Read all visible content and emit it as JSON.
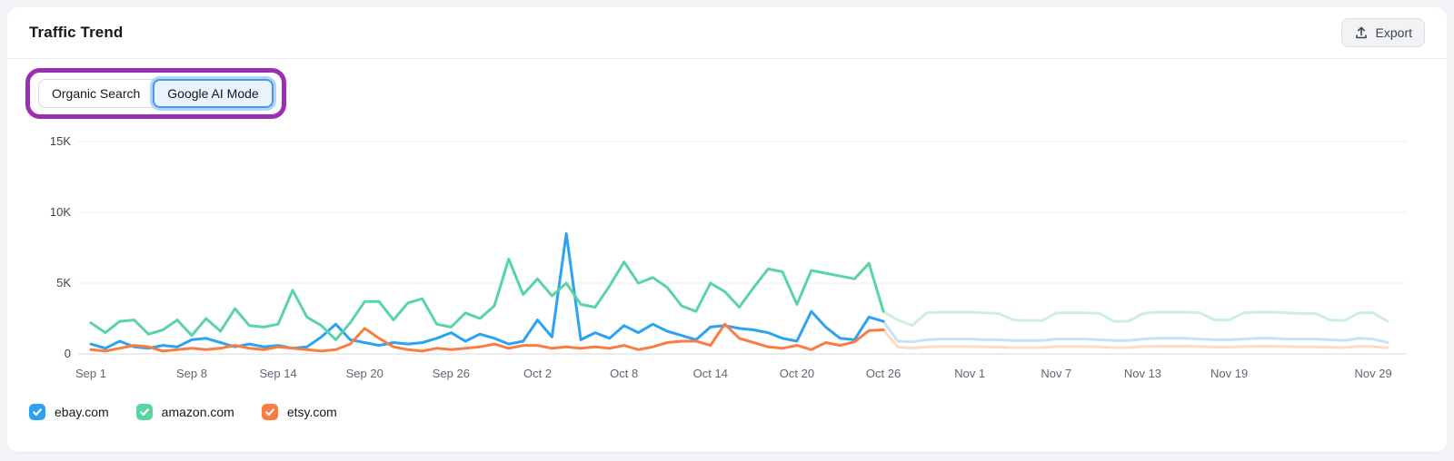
{
  "header": {
    "title": "Traffic Trend",
    "export_label": "Export"
  },
  "toggle": {
    "options": [
      {
        "label": "Organic Search",
        "selected": false
      },
      {
        "label": "Google AI Mode",
        "selected": true
      }
    ],
    "annotation_color": "#9b2fb2"
  },
  "chart_data": {
    "type": "line",
    "title": "Traffic Trend",
    "xlabel": "",
    "ylabel": "",
    "ylim": [
      0,
      15000
    ],
    "grid": true,
    "legend_position": "bottom",
    "y_ticks": [
      {
        "label": "15K",
        "value": 15000
      },
      {
        "label": "10K",
        "value": 10000
      },
      {
        "label": "5K",
        "value": 5000
      },
      {
        "label": "0",
        "value": 0
      }
    ],
    "x_tick_labels": [
      {
        "label": "Sep 1",
        "index": 0
      },
      {
        "label": "Sep 8",
        "index": 7
      },
      {
        "label": "Sep 14",
        "index": 13
      },
      {
        "label": "Sep 20",
        "index": 19
      },
      {
        "label": "Sep 26",
        "index": 25
      },
      {
        "label": "Oct 2",
        "index": 31
      },
      {
        "label": "Oct 8",
        "index": 37
      },
      {
        "label": "Oct 14",
        "index": 43
      },
      {
        "label": "Oct 20",
        "index": 49
      },
      {
        "label": "Oct 26",
        "index": 55
      },
      {
        "label": "Nov 1",
        "index": 61
      },
      {
        "label": "Nov 7",
        "index": 67
      },
      {
        "label": "Nov 13",
        "index": 73
      },
      {
        "label": "Nov 19",
        "index": 79
      },
      {
        "label": "Nov 29",
        "index": 89
      }
    ],
    "days_total": 91,
    "faded_after_index": 55,
    "series": [
      {
        "name": "ebay.com",
        "color": "#2ba3f2",
        "faded_color": "#c3e3fa",
        "checked": true,
        "values": [
          700,
          400,
          900,
          500,
          400,
          600,
          500,
          1000,
          1100,
          800,
          500,
          700,
          500,
          600,
          400,
          500,
          1200,
          2100,
          1000,
          800,
          600,
          800,
          700,
          800,
          1100,
          1500,
          900,
          1400,
          1100,
          700,
          900,
          2400,
          1200,
          8500,
          1000,
          1500,
          1100,
          2000,
          1500,
          2100,
          1600,
          1300,
          1000,
          1900,
          2000,
          1800,
          1700,
          1500,
          1100,
          900,
          3000,
          1900,
          1100,
          1000,
          2600,
          2300,
          900,
          850,
          1000,
          1050,
          1050,
          1050,
          1000,
          1000,
          950,
          950,
          950,
          1050,
          1050,
          1050,
          1000,
          950,
          950,
          1050,
          1100,
          1100,
          1100,
          1050,
          1000,
          1000,
          1050,
          1100,
          1100,
          1050,
          1050,
          1050,
          1000,
          950,
          1100,
          1050,
          800
        ]
      },
      {
        "name": "amazon.com",
        "color": "#58d5a2",
        "faded_color": "#cdefdf",
        "checked": true,
        "values": [
          2200,
          1500,
          2300,
          2400,
          1400,
          1700,
          2400,
          1300,
          2500,
          1600,
          3200,
          2000,
          1900,
          2100,
          4500,
          2600,
          2000,
          1000,
          2200,
          3700,
          3700,
          2400,
          3600,
          3900,
          2100,
          1900,
          2900,
          2500,
          3400,
          6700,
          4200,
          5300,
          4100,
          5000,
          3500,
          3300,
          4800,
          6500,
          5000,
          5400,
          4700,
          3400,
          3000,
          5000,
          4400,
          3300,
          4700,
          6000,
          5800,
          3500,
          5900,
          5700,
          5500,
          5300,
          6400,
          3000,
          2400,
          2000,
          2900,
          2950,
          2950,
          2950,
          2900,
          2850,
          2400,
          2350,
          2350,
          2900,
          2900,
          2900,
          2850,
          2300,
          2300,
          2850,
          2950,
          2950,
          2950,
          2900,
          2400,
          2400,
          2900,
          2950,
          2950,
          2900,
          2850,
          2850,
          2400,
          2350,
          2900,
          2900,
          2300
        ]
      },
      {
        "name": "etsy.com",
        "color": "#fb7c42",
        "faded_color": "#fcdcc5",
        "checked": true,
        "values": [
          300,
          200,
          400,
          600,
          500,
          200,
          300,
          400,
          300,
          400,
          600,
          400,
          300,
          500,
          400,
          300,
          200,
          300,
          700,
          1800,
          1100,
          500,
          300,
          200,
          400,
          300,
          400,
          500,
          700,
          400,
          600,
          600,
          400,
          500,
          400,
          500,
          400,
          600,
          300,
          500,
          800,
          900,
          900,
          600,
          2100,
          1100,
          800,
          500,
          400,
          600,
          300,
          800,
          600,
          850,
          1650,
          1700,
          500,
          400,
          500,
          520,
          520,
          520,
          500,
          480,
          450,
          450,
          450,
          520,
          520,
          520,
          500,
          450,
          450,
          520,
          540,
          540,
          540,
          520,
          480,
          480,
          520,
          540,
          540,
          520,
          500,
          500,
          460,
          450,
          540,
          520,
          430
        ]
      }
    ]
  }
}
